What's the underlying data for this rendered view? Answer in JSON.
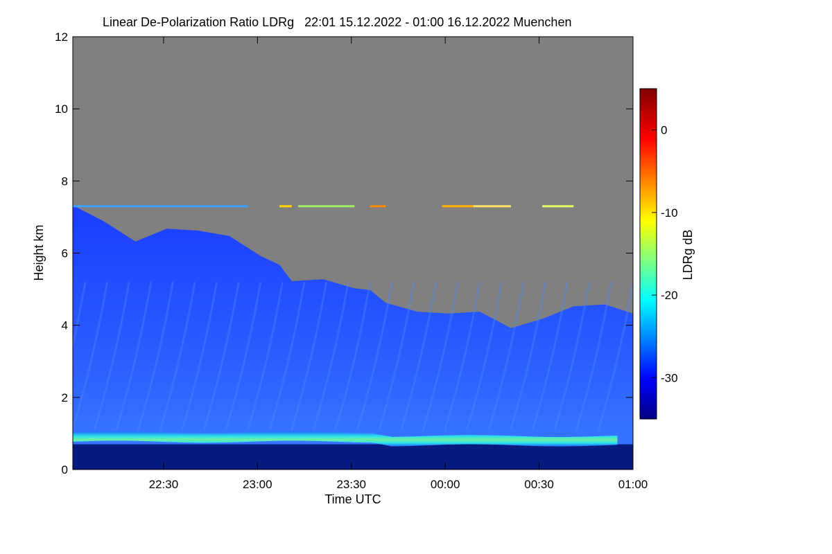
{
  "chart_data": {
    "type": "heatmap",
    "title": "Linear De-Polarization Ratio LDRg   22:01 15.12.2022 - 01:00 16.12.2022 Muenchen",
    "xlabel": "Time UTC",
    "ylabel": "Height km",
    "colorbar_label": "LDRg dB",
    "x_range": [
      "22:01",
      "01:00"
    ],
    "x_ticks": [
      "22:30",
      "23:00",
      "23:30",
      "00:00",
      "00:30",
      "01:00"
    ],
    "y_range": [
      0,
      12
    ],
    "y_ticks": [
      0,
      2,
      4,
      6,
      8,
      10,
      12
    ],
    "color_range": [
      -35,
      5
    ],
    "color_ticks": [
      0,
      -10,
      -20,
      -30
    ],
    "no_data_color": "#808080",
    "cloud_top_profile": {
      "time_min_after_start": [
        0,
        10,
        20,
        30,
        40,
        50,
        60,
        66,
        70,
        80,
        90,
        95,
        100,
        110,
        120,
        130,
        140,
        150,
        160,
        170,
        179
      ],
      "height_km": [
        7.4,
        6.8,
        6.4,
        6.6,
        6.7,
        6.4,
        6.0,
        5.6,
        5.3,
        5.2,
        5.1,
        4.9,
        4.7,
        4.3,
        4.4,
        4.3,
        4.0,
        4.1,
        4.6,
        4.5,
        4.4
      ]
    },
    "boundary_layer_top_km": 0.9,
    "thin_layer_height_km": 7.3
  }
}
